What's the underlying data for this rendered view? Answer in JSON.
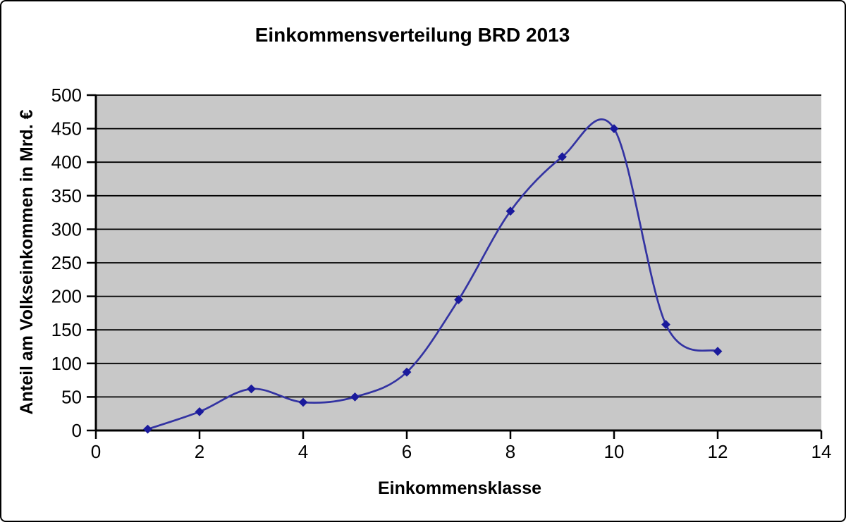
{
  "chart_data": {
    "type": "line",
    "title": "Einkommensverteilung BRD 2013",
    "xlabel": "Einkommensklasse",
    "ylabel": "Anteil am Volkseinkommen in Mrd. €",
    "series": [
      {
        "x": [
          1,
          2,
          3,
          4,
          5,
          6,
          7,
          8,
          9,
          10,
          11,
          12
        ],
        "y": [
          2,
          28,
          62,
          42,
          50,
          87,
          195,
          327,
          408,
          450,
          158,
          118
        ]
      }
    ],
    "xlim": [
      0,
      14
    ],
    "ylim": [
      0,
      500
    ],
    "xticks": [
      0,
      2,
      4,
      6,
      8,
      10,
      12,
      14
    ],
    "yticks": [
      0,
      50,
      100,
      150,
      200,
      250,
      300,
      350,
      400,
      450,
      500
    ],
    "grid": "horizontal",
    "legend_position": "none",
    "smooth_line": true,
    "marker": "diamond",
    "colors": {
      "line": "#3333A2",
      "marker": "#1A1A9C",
      "plot_background": "#C8C8C8",
      "gridline": "#000000",
      "axis": "#000000",
      "text": "#000000",
      "page_background": "#FFFFFF",
      "frame_border": "#000000"
    }
  }
}
